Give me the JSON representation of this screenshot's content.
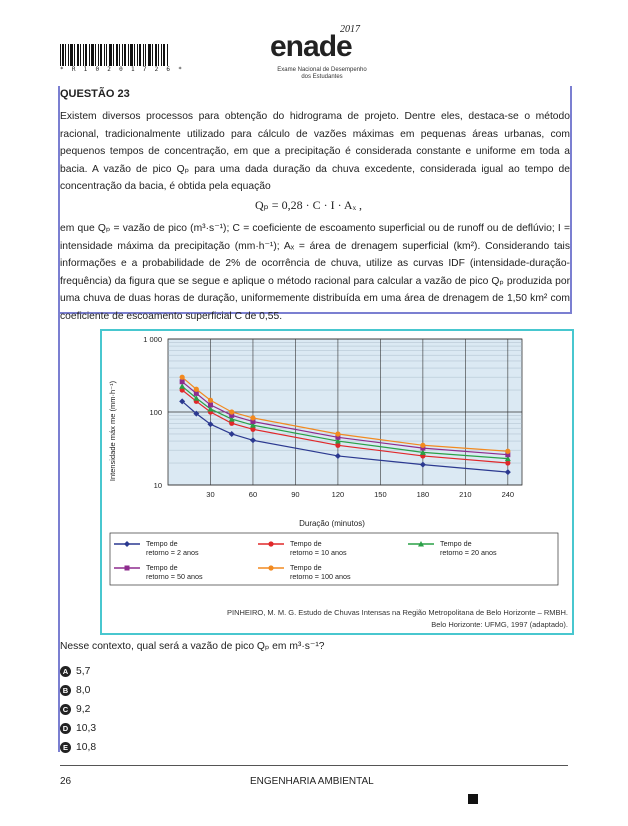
{
  "header": {
    "barcode_number": "* R 1 0 2 0 1 7 2 6 *",
    "brand": "enade",
    "year": "2017",
    "brand_subtitle_1": "Exame Nacional de Desempenho",
    "brand_subtitle_2": "dos Estudantes"
  },
  "question": {
    "title": "QUESTÃO 23",
    "para1": "Existem diversos processos para obtenção do hidrograma de projeto. Dentre eles, destaca-se o método racional, tradicionalmente utilizado para cálculo de vazões máximas em pequenas áreas urbanas, com pequenos tempos de concentração, em que a precipitação é considerada constante e uniforme em toda a bacia. A vazão de pico Qₚ para uma dada duração da chuva excedente, considerada igual ao tempo de concentração da bacia, é obtida pela equação",
    "equation": "Qₚ = 0,28 · C · I · Aₓ ,",
    "para2": "em que Qₚ = vazão de pico (m³·s⁻¹); C = coeficiente de escoamento superficial ou de runoff ou de deflúvio; I = intensidade máxima da precipitação (mm·h⁻¹); Aₓ = área de drenagem superficial (km²). Considerando tais informações e a probabilidade de 2% de ocorrência de chuva, utilize as curvas IDF (intensidade-duração-frequência) da figura que se segue e aplique o método racional para calcular a vazão de pico Qₚ produzida por uma chuva de duas horas de duração, uniformemente distribuída em uma área de drenagem de 1,50 km² com coeficiente de escoamento superficial C de 0,55.",
    "source_line1": "PINHEIRO, M. M. G. Estudo de Chuvas Intensas na Região Metropolitana de Belo Horizonte – RMBH.",
    "source_line2": "Belo Horizonte: UFMG, 1997 (adaptado).",
    "prompt": "Nesse contexto, qual será a vazão de pico Qₚ em m³·s⁻¹?",
    "options": [
      {
        "letter": "A",
        "value": "5,7"
      },
      {
        "letter": "B",
        "value": "8,0"
      },
      {
        "letter": "C",
        "value": "9,2"
      },
      {
        "letter": "D",
        "value": "10,3"
      },
      {
        "letter": "E",
        "value": "10,8"
      }
    ]
  },
  "footer": {
    "page": "26",
    "course": "ENGENHARIA AMBIENTAL"
  },
  "chart_data": {
    "type": "line",
    "xlabel": "Duração (minutos)",
    "ylabel": "Intensidade máx me (mm·h⁻¹)",
    "x_ticks": [
      30,
      60,
      90,
      120,
      150,
      180,
      210,
      240
    ],
    "y_ticks": [
      "10",
      "100",
      "1 000"
    ],
    "y_scale": "log",
    "xlim": [
      0,
      250
    ],
    "ylim": [
      10,
      1000
    ],
    "grid": true,
    "legend": "bottom",
    "x": [
      10,
      20,
      30,
      45,
      60,
      120,
      180,
      240
    ],
    "series": [
      {
        "name": "Tempo de retorno = 2 anos",
        "color": "#2b3990",
        "marker": "diamond",
        "values": [
          140,
          95,
          68,
          50,
          41,
          25,
          19,
          15
        ]
      },
      {
        "name": "Tempo de retorno = 10 anos",
        "color": "#e0282a",
        "marker": "circle",
        "values": [
          200,
          140,
          100,
          70,
          58,
          35,
          25,
          20
        ]
      },
      {
        "name": "Tempo de retorno = 20 anos",
        "color": "#2aa047",
        "marker": "triangle",
        "values": [
          225,
          155,
          110,
          80,
          66,
          40,
          28,
          23
        ]
      },
      {
        "name": "Tempo de retorno = 50 anos",
        "color": "#8e2c8e",
        "marker": "square",
        "values": [
          260,
          180,
          125,
          90,
          74,
          45,
          32,
          26
        ]
      },
      {
        "name": "Tempo de retorno = 100 anos",
        "color": "#f28a20",
        "marker": "circle",
        "values": [
          300,
          205,
          145,
          100,
          83,
          50,
          35,
          29
        ]
      }
    ]
  }
}
